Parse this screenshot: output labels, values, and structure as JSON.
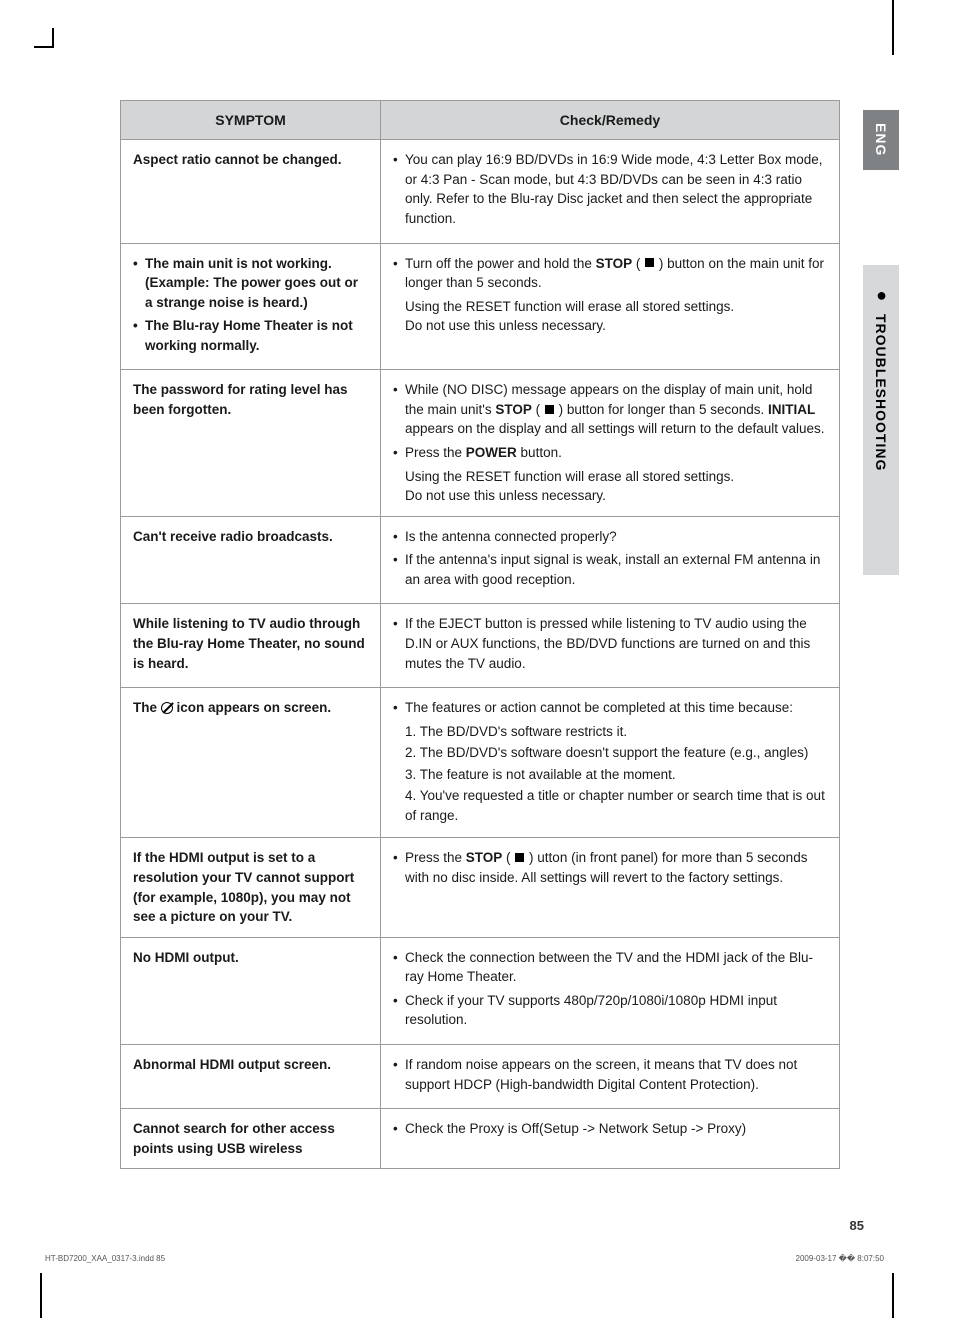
{
  "lang_tab": "ENG",
  "section_tab": "TROUBLESHOOTING",
  "table": {
    "header": {
      "symptom": "SYMPTOM",
      "remedy": "Check/Remedy"
    },
    "rows": [
      {
        "symptom_plain": "Aspect ratio cannot be changed.",
        "remedy_items": [
          "You can play 16:9 BD/DVDs in 16:9 Wide mode, 4:3 Letter Box mode, or 4:3 Pan - Scan mode, but 4:3 BD/DVDs can be seen in 4:3 ratio only. Refer to the Blu-ray Disc jacket and then select the appropriate function."
        ]
      },
      {
        "symptom_items": [
          "The main unit is not working. (Example: The power goes out or a strange noise is heard.)",
          "The Blu-ray Home Theater is not working normally."
        ],
        "remedy_stop_pre": "Turn off the power and hold the ",
        "remedy_stop_label": "STOP",
        "remedy_stop_post": " button on the main unit for longer than 5 seconds.",
        "remedy_tail1": "Using the RESET function will erase all stored settings.",
        "remedy_tail2": "Do not use this unless necessary."
      },
      {
        "symptom_plain": "The password for rating level has been forgotten.",
        "remedy_pw_pre": "While (NO DISC) message appears on the display of main unit, hold the main unit's ",
        "remedy_pw_stop": "STOP",
        "remedy_pw_mid": " button for longer than 5 seconds. ",
        "remedy_pw_initial": "INITIAL",
        "remedy_pw_post": " appears on the display and all settings will return to the default values.",
        "remedy_pw_press_pre": "Press the ",
        "remedy_pw_power": "POWER",
        "remedy_pw_press_post": " button.",
        "remedy_tail1": "Using the RESET function will erase all stored settings.",
        "remedy_tail2": "Do not use this unless necessary."
      },
      {
        "symptom_plain": "Can't receive radio broadcasts.",
        "remedy_items": [
          "Is the antenna connected properly?",
          "If the antenna's input signal is weak, install an external FM antenna in an area with good reception."
        ]
      },
      {
        "symptom_plain": "While listening to TV audio through the Blu-ray Home Theater, no sound is heard.",
        "remedy_items": [
          "If the EJECT button is pressed while listening to TV audio using the D.IN or AUX functions, the BD/DVD functions are turned on and this mutes the TV audio."
        ]
      },
      {
        "symptom_icon_pre": "The ",
        "symptom_icon_post": " icon appears on screen.",
        "remedy_lead": "The features or action cannot be completed at this time because:",
        "remedy_numbered": [
          "1. The BD/DVD's software restricts it.",
          "2. The BD/DVD's software doesn't support the feature (e.g., angles)",
          "3. The feature is not available at the moment.",
          "4. You've requested a title or chapter number or search time that is out of range."
        ]
      },
      {
        "symptom_plain": "If the HDMI output is set to a resolution your TV cannot support (for example, 1080p), you may not see a picture on your TV.",
        "remedy_stop_pre2": "Press the ",
        "remedy_stop_label2": "STOP",
        "remedy_stop_post2": " utton (in front panel) for more than 5 seconds with no disc inside. All settings will revert to the factory settings."
      },
      {
        "symptom_plain": "No HDMI output.",
        "remedy_items": [
          "Check the connection between the TV and the HDMI jack of the Blu-ray Home Theater.",
          "Check if your TV supports 480p/720p/1080i/1080p HDMI input resolution."
        ]
      },
      {
        "symptom_plain": "Abnormal HDMI output screen.",
        "remedy_items": [
          "If random noise appears on the screen, it means that TV does not support HDCP (High-bandwidth Digital Content Protection)."
        ]
      },
      {
        "symptom_plain": "Cannot search for other access points using USB wireless",
        "remedy_items": [
          "Check the Proxy is Off(Setup -> Network Setup -> Proxy)"
        ]
      }
    ]
  },
  "page_number": "85",
  "footer_left": "HT-BD7200_XAA_0317-3.indd   85",
  "footer_right": "2009-03-17   �� 8:07:50",
  "colors": {
    "header_bg": "#d4d5d6",
    "border": "#9a9a9a",
    "lang_tab_bg": "#7f8285",
    "section_tab_bg": "#d7d8d9",
    "text": "#1a1a1a"
  }
}
